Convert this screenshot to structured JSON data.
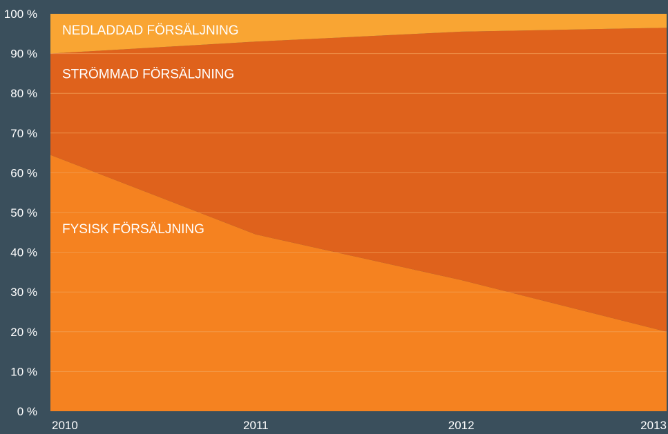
{
  "chart_data": {
    "type": "area",
    "stacked": true,
    "normalized": true,
    "x": [
      "2010",
      "2011",
      "2012",
      "2013"
    ],
    "series": [
      {
        "name": "FYSISK FÖRSÄLJNING",
        "values": [
          64.5,
          44.5,
          33,
          20
        ],
        "color": "#f58220"
      },
      {
        "name": "STRÖMMAD FÖRSÄLJNING",
        "values": [
          25.5,
          48.5,
          62.5,
          76.5
        ],
        "color": "#df621c"
      },
      {
        "name": "NEDLADDAD FÖRSÄLJNING",
        "values": [
          10,
          7,
          4.5,
          3.5
        ],
        "color": "#f9a533"
      }
    ],
    "y_ticks": [
      "0 %",
      "10 %",
      "20 %",
      "30 %",
      "40 %",
      "50 %",
      "60 %",
      "70 %",
      "80 %",
      "90 %",
      "100 %"
    ],
    "ylim": [
      0,
      100
    ],
    "grid": true,
    "legend": "inline labels"
  }
}
